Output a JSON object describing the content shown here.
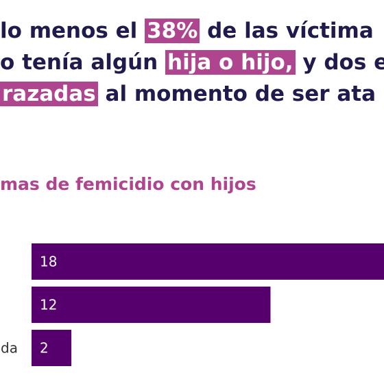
{
  "headline": {
    "line1": {
      "pre": "lo menos el ",
      "highlight": "38%",
      "post": " de las víctima"
    },
    "line2": {
      "pre": "o tenía algún ",
      "highlight": "hija o hijo,",
      "post": " y dos e"
    },
    "line3": {
      "pre": "",
      "highlight": "razadas",
      "post": " al momento de ser ata"
    }
  },
  "subtitle": "mas de femicidio con hijos",
  "colors": {
    "bar": "#55006d",
    "highlight": "#b0458f",
    "headline": "#1f1b4d"
  },
  "chart_data": {
    "type": "bar",
    "orientation": "horizontal",
    "categories": [
      "",
      "",
      "da"
    ],
    "values": [
      18,
      12,
      2
    ]
  }
}
